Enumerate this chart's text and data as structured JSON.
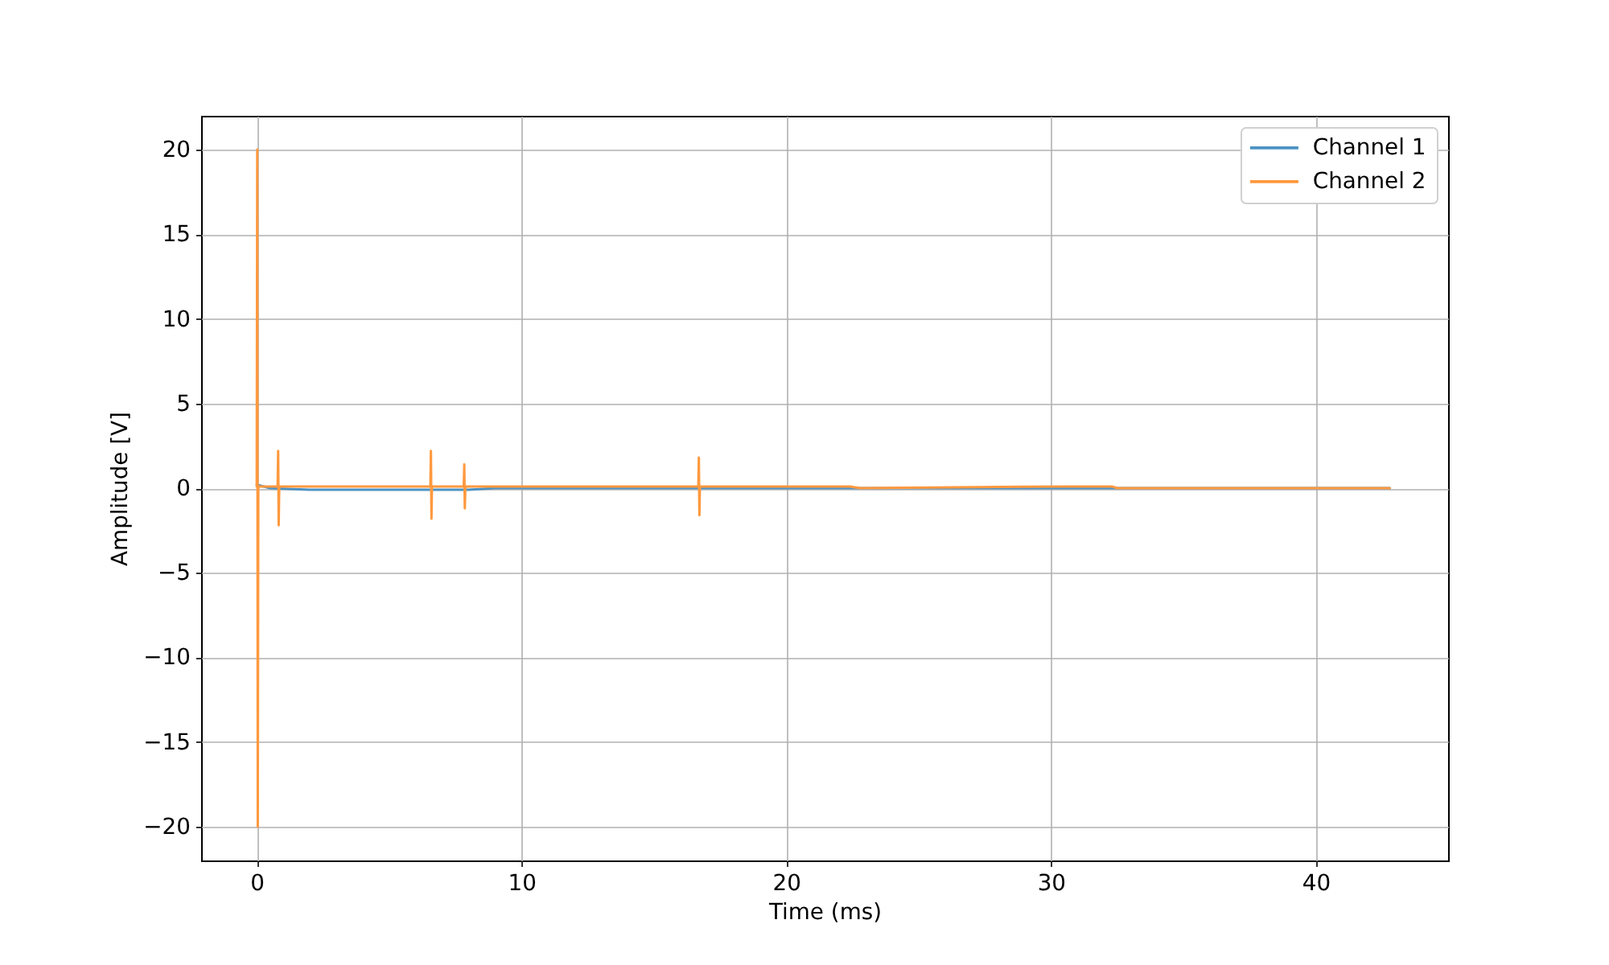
{
  "chart_data": {
    "type": "line",
    "xlabel": "Time (ms)",
    "ylabel": "Amplitude [V]",
    "xlim": [
      -2.1,
      45.0
    ],
    "ylim": [
      -22,
      22
    ],
    "xticks": [
      0,
      10,
      20,
      30,
      40
    ],
    "yticks": [
      -20,
      -15,
      -10,
      -5,
      0,
      5,
      10,
      15,
      20
    ],
    "grid": true,
    "legend": "top right",
    "line_style": "solid",
    "series": [
      {
        "name": "Channel 1",
        "color": "#4c92c3",
        "x": [
          0,
          0.5,
          2.0,
          8.0,
          9.0,
          15.0,
          22.0,
          30.0,
          42.8
        ],
        "values": [
          0.2,
          0.0,
          -0.1,
          -0.1,
          0.0,
          0.0,
          0.0,
          0.0,
          0.0
        ]
      },
      {
        "name": "Channel 2",
        "color": "#ff993e",
        "x": [
          0,
          0.02,
          0.04,
          0.06,
          0.79,
          0.81,
          0.83,
          0.85,
          6.56,
          6.58,
          6.6,
          6.62,
          7.82,
          7.84,
          7.86,
          7.88,
          16.68,
          16.7,
          16.72,
          16.74,
          22.4,
          22.8,
          30.5,
          32.3,
          32.5,
          42.8
        ],
        "values": [
          0.1,
          20,
          -20,
          0.1,
          0.1,
          2.2,
          -2.2,
          0.1,
          0.1,
          2.2,
          -1.8,
          0.1,
          0.1,
          1.4,
          -1.2,
          0.1,
          0.1,
          1.8,
          -1.6,
          0.1,
          0.1,
          0.0,
          0.1,
          0.1,
          0.0,
          0.0
        ]
      }
    ]
  }
}
